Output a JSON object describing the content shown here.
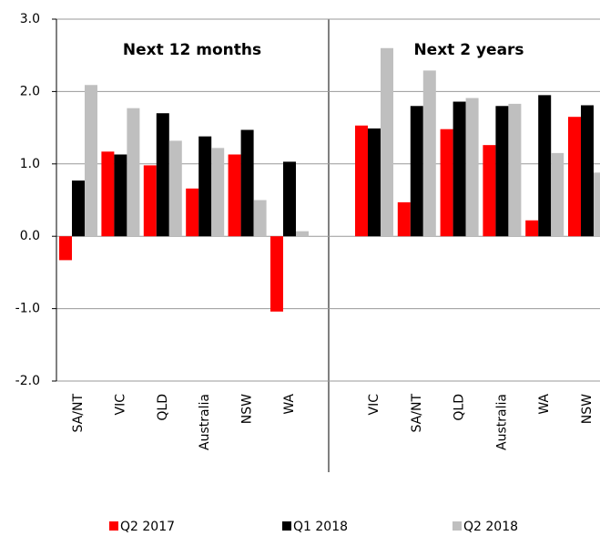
{
  "chart_data": [
    {
      "type": "bar",
      "title": "Next 12 months",
      "categories": [
        "SA/NT",
        "VIC",
        "QLD",
        "Australia",
        "NSW",
        "WA"
      ],
      "series": [
        {
          "name": "Q2 2017",
          "color": "#ff0000",
          "values": [
            -0.33,
            1.17,
            0.98,
            0.66,
            1.13,
            -1.04
          ]
        },
        {
          "name": "Q1 2018",
          "color": "#000000",
          "values": [
            0.77,
            1.13,
            1.7,
            1.38,
            1.47,
            1.03
          ]
        },
        {
          "name": "Q2 2018",
          "color": "#bfbfbf",
          "values": [
            2.09,
            1.77,
            1.32,
            1.22,
            0.5,
            0.07
          ]
        }
      ],
      "ylim": [
        -2,
        3
      ],
      "yticks": [
        {
          "value": -2,
          "label": "-2.0"
        },
        {
          "value": -1,
          "label": "-1.0"
        },
        {
          "value": 0,
          "label": "0.0"
        },
        {
          "value": 1,
          "label": "1.0"
        },
        {
          "value": 2,
          "label": "2.0"
        },
        {
          "value": 3,
          "label": "3.0"
        }
      ],
      "grid": true,
      "legend": "bottom"
    },
    {
      "type": "bar",
      "title": "Next 2 years",
      "categories": [
        "VIC",
        "SA/NT",
        "QLD",
        "Australia",
        "WA",
        "NSW"
      ],
      "series": [
        {
          "color": "#ff0000",
          "values": [
            1.53,
            0.47,
            1.48,
            1.26,
            0.22,
            1.65
          ]
        },
        {
          "color": "#000000",
          "values": [
            1.49,
            1.8,
            1.86,
            1.8,
            1.95,
            1.81
          ]
        },
        {
          "color": "#bfbfbf",
          "values": [
            2.6,
            2.29,
            1.91,
            1.83,
            1.15,
            0.88
          ]
        }
      ]
    }
  ]
}
